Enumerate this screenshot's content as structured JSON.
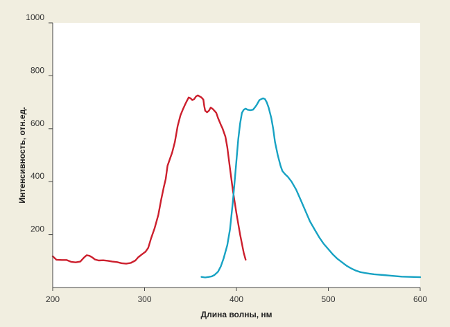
{
  "chart_data": {
    "type": "line",
    "title": "",
    "xlabel": "Длина волны, нм",
    "ylabel": "Интенсивность, отн.ед.",
    "xlim": [
      200,
      600
    ],
    "ylim": [
      0,
      1000
    ],
    "x_ticks": [
      "200",
      "300",
      "400",
      "500",
      "600"
    ],
    "y_ticks": [
      "200",
      "400",
      "600",
      "800",
      "1000"
    ],
    "x_tick_values": [
      200,
      300,
      400,
      500,
      600
    ],
    "y_tick_values": [
      200,
      400,
      600,
      800,
      1000
    ],
    "grid": false,
    "colors": {
      "background": "#f1eee0",
      "plot_area": "#ffffff",
      "excitation": "#cc1f2d",
      "emission": "#17a2c3"
    },
    "series": [
      {
        "color": "#cc1f2d",
        "points": [
          [
            200,
            118
          ],
          [
            204,
            105
          ],
          [
            210,
            104
          ],
          [
            215,
            104
          ],
          [
            220,
            97
          ],
          [
            225,
            95
          ],
          [
            230,
            98
          ],
          [
            234,
            113
          ],
          [
            237,
            122
          ],
          [
            240,
            120
          ],
          [
            243,
            114
          ],
          [
            246,
            106
          ],
          [
            250,
            102
          ],
          [
            255,
            103
          ],
          [
            260,
            101
          ],
          [
            265,
            98
          ],
          [
            270,
            96
          ],
          [
            275,
            92
          ],
          [
            280,
            90
          ],
          [
            285,
            93
          ],
          [
            290,
            102
          ],
          [
            293,
            114
          ],
          [
            297,
            125
          ],
          [
            301,
            135
          ],
          [
            304,
            150
          ],
          [
            307,
            185
          ],
          [
            311,
            225
          ],
          [
            315,
            275
          ],
          [
            318,
            330
          ],
          [
            321,
            380
          ],
          [
            323,
            410
          ],
          [
            325,
            460
          ],
          [
            328,
            490
          ],
          [
            330,
            510
          ],
          [
            333,
            550
          ],
          [
            336,
            610
          ],
          [
            339,
            650
          ],
          [
            342,
            675
          ],
          [
            345,
            698
          ],
          [
            348,
            718
          ],
          [
            350,
            715
          ],
          [
            352,
            708
          ],
          [
            354,
            712
          ],
          [
            356,
            722
          ],
          [
            358,
            726
          ],
          [
            360,
            722
          ],
          [
            362,
            718
          ],
          [
            364,
            710
          ],
          [
            365,
            685
          ],
          [
            366,
            668
          ],
          [
            368,
            662
          ],
          [
            370,
            668
          ],
          [
            372,
            680
          ],
          [
            374,
            675
          ],
          [
            376,
            668
          ],
          [
            378,
            660
          ],
          [
            380,
            640
          ],
          [
            383,
            615
          ],
          [
            385,
            600
          ],
          [
            388,
            570
          ],
          [
            390,
            530
          ],
          [
            393,
            450
          ],
          [
            396,
            370
          ],
          [
            400,
            280
          ],
          [
            404,
            200
          ],
          [
            408,
            130
          ],
          [
            410,
            105
          ]
        ]
      },
      {
        "color": "#17a2c3",
        "points": [
          [
            362,
            40
          ],
          [
            366,
            38
          ],
          [
            370,
            40
          ],
          [
            373,
            42
          ],
          [
            376,
            47
          ],
          [
            380,
            60
          ],
          [
            383,
            80
          ],
          [
            386,
            110
          ],
          [
            390,
            160
          ],
          [
            393,
            220
          ],
          [
            396,
            320
          ],
          [
            398,
            400
          ],
          [
            400,
            480
          ],
          [
            402,
            560
          ],
          [
            404,
            620
          ],
          [
            406,
            660
          ],
          [
            408,
            672
          ],
          [
            410,
            676
          ],
          [
            412,
            672
          ],
          [
            415,
            670
          ],
          [
            418,
            672
          ],
          [
            420,
            680
          ],
          [
            422,
            690
          ],
          [
            425,
            708
          ],
          [
            427,
            712
          ],
          [
            429,
            715
          ],
          [
            431,
            712
          ],
          [
            433,
            700
          ],
          [
            435,
            680
          ],
          [
            438,
            640
          ],
          [
            440,
            600
          ],
          [
            442,
            550
          ],
          [
            445,
            500
          ],
          [
            448,
            460
          ],
          [
            450,
            440
          ],
          [
            453,
            428
          ],
          [
            456,
            418
          ],
          [
            460,
            400
          ],
          [
            465,
            370
          ],
          [
            470,
            330
          ],
          [
            475,
            290
          ],
          [
            480,
            250
          ],
          [
            485,
            220
          ],
          [
            490,
            190
          ],
          [
            495,
            165
          ],
          [
            500,
            145
          ],
          [
            505,
            125
          ],
          [
            510,
            108
          ],
          [
            515,
            95
          ],
          [
            520,
            82
          ],
          [
            525,
            72
          ],
          [
            530,
            64
          ],
          [
            535,
            58
          ],
          [
            540,
            55
          ],
          [
            545,
            52
          ],
          [
            550,
            50
          ],
          [
            560,
            47
          ],
          [
            570,
            44
          ],
          [
            580,
            41
          ],
          [
            590,
            40
          ],
          [
            600,
            39
          ]
        ]
      }
    ]
  }
}
